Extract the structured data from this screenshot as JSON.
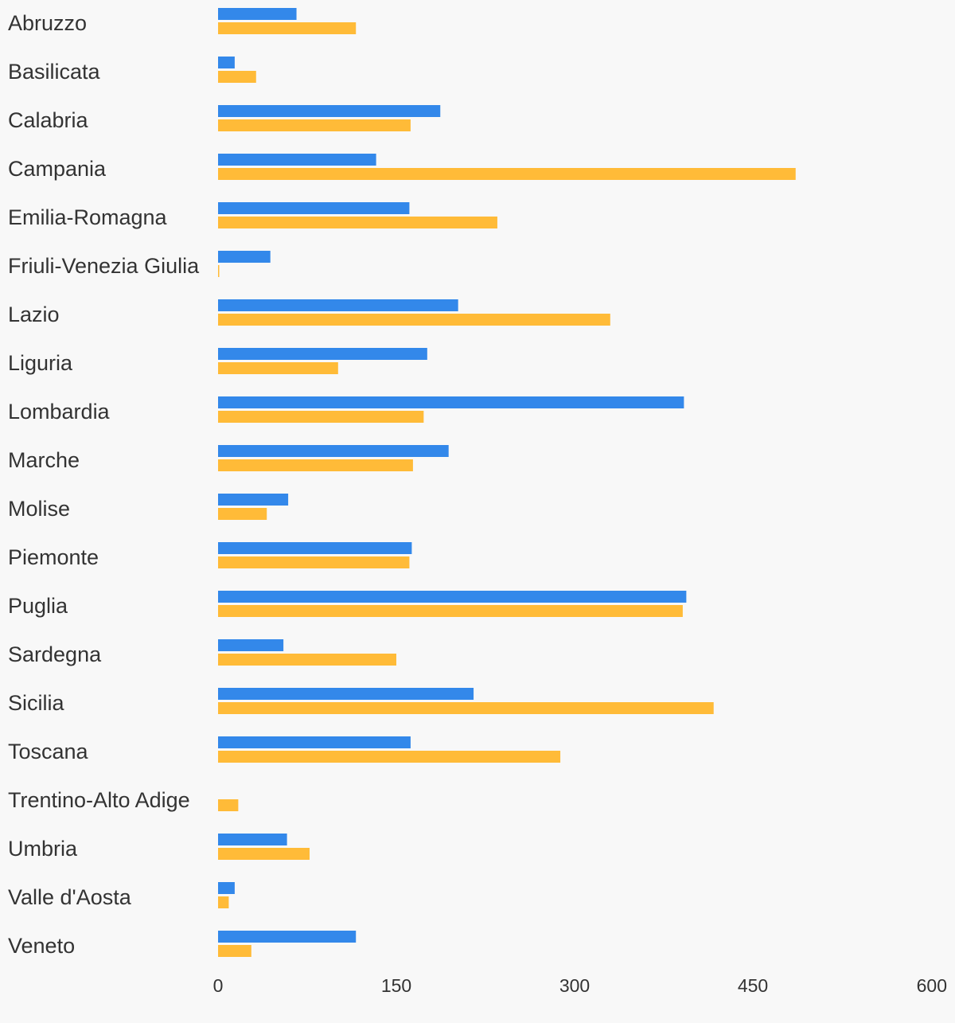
{
  "chart_data": {
    "type": "bar",
    "orientation": "horizontal",
    "categories": [
      "Abruzzo",
      "Basilicata",
      "Calabria",
      "Campania",
      "Emilia-Romagna",
      "Friuli-Venezia Giulia",
      "Lazio",
      "Liguria",
      "Lombardia",
      "Marche",
      "Molise",
      "Piemonte",
      "Puglia",
      "Sardegna",
      "Sicilia",
      "Toscana",
      "Trentino-Alto Adige",
      "Umbria",
      "Valle d'Aosta",
      "Veneto"
    ],
    "series": [
      {
        "color": "#3388ea",
        "values": [
          66,
          14,
          187,
          133,
          161,
          44,
          202,
          176,
          392,
          194,
          59,
          163,
          394,
          55,
          215,
          162,
          0,
          58,
          14,
          116
        ]
      },
      {
        "color": "#ffbb38",
        "values": [
          116,
          32,
          162,
          486,
          235,
          1,
          330,
          101,
          173,
          164,
          41,
          161,
          391,
          150,
          417,
          288,
          17,
          77,
          9,
          28
        ]
      }
    ],
    "x_ticks": [
      "0",
      "150",
      "300",
      "450",
      "600"
    ],
    "xlim": [
      0,
      600
    ],
    "grid": false,
    "legend": "none"
  }
}
